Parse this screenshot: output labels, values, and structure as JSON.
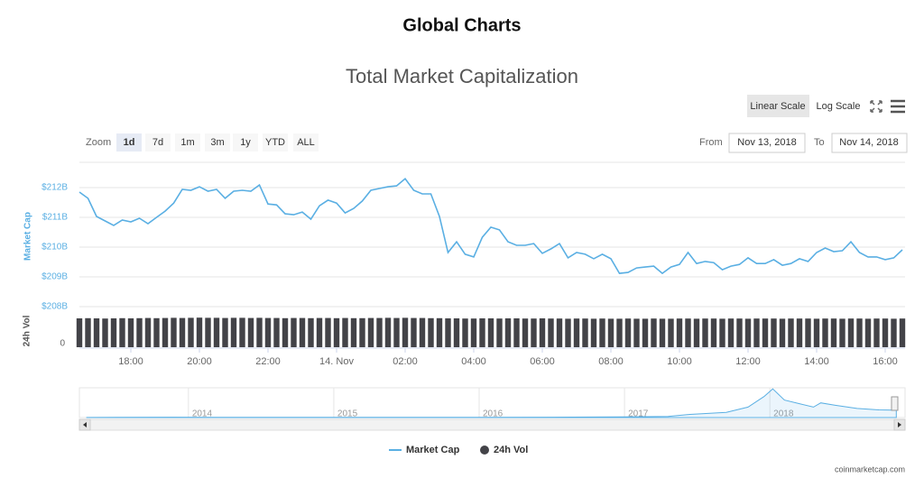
{
  "header": {
    "title": "Global Charts"
  },
  "chart_data": {
    "type": "line",
    "title": "Total Market Capitalization",
    "scale_buttons": [
      "Linear Scale",
      "Log Scale"
    ],
    "log_scale": false,
    "zoom_label": "Zoom",
    "zoom_buttons": [
      "1d",
      "7d",
      "1m",
      "3m",
      "1y",
      "YTD",
      "ALL"
    ],
    "zoom_selected": 0,
    "from_label": "From",
    "from": "Nov 13, 2018",
    "to_label": "To",
    "to": "Nov 14, 2018",
    "y_label": "Market Cap",
    "y2_label": "24h Vol",
    "x": [
      "2018-11-13 16:30",
      "2018-11-13 16:45",
      "2018-11-13 17:00",
      "2018-11-13 17:15",
      "2018-11-13 17:30",
      "2018-11-13 17:45",
      "2018-11-13 18:00",
      "2018-11-13 18:15",
      "2018-11-13 18:30",
      "2018-11-13 18:45",
      "2018-11-13 19:00",
      "2018-11-13 19:15",
      "2018-11-13 19:30",
      "2018-11-13 19:45",
      "2018-11-13 20:00",
      "2018-11-13 20:15",
      "2018-11-13 20:30",
      "2018-11-13 20:45",
      "2018-11-13 21:00",
      "2018-11-13 21:15",
      "2018-11-13 21:30",
      "2018-11-13 21:45",
      "2018-11-13 22:00",
      "2018-11-13 22:15",
      "2018-11-13 22:30",
      "2018-11-13 22:45",
      "2018-11-13 23:00",
      "2018-11-13 23:15",
      "2018-11-13 23:30",
      "2018-11-13 23:45",
      "2018-11-14 00:00",
      "2018-11-14 00:15",
      "2018-11-14 00:30",
      "2018-11-14 00:45",
      "2018-11-14 01:00",
      "2018-11-14 01:15",
      "2018-11-14 01:30",
      "2018-11-14 01:45",
      "2018-11-14 02:00",
      "2018-11-14 02:15",
      "2018-11-14 02:30",
      "2018-11-14 02:45",
      "2018-11-14 03:00",
      "2018-11-14 03:15",
      "2018-11-14 03:30",
      "2018-11-14 03:45",
      "2018-11-14 04:00",
      "2018-11-14 04:15",
      "2018-11-14 04:30",
      "2018-11-14 04:45",
      "2018-11-14 05:00",
      "2018-11-14 05:15",
      "2018-11-14 05:30",
      "2018-11-14 05:45",
      "2018-11-14 06:00",
      "2018-11-14 06:15",
      "2018-11-14 06:30",
      "2018-11-14 06:45",
      "2018-11-14 07:00",
      "2018-11-14 07:15",
      "2018-11-14 07:30",
      "2018-11-14 07:45",
      "2018-11-14 08:00",
      "2018-11-14 08:15",
      "2018-11-14 08:30",
      "2018-11-14 08:45",
      "2018-11-14 09:00",
      "2018-11-14 09:15",
      "2018-11-14 09:30",
      "2018-11-14 09:45",
      "2018-11-14 10:00",
      "2018-11-14 10:15",
      "2018-11-14 10:30",
      "2018-11-14 10:45",
      "2018-11-14 11:00",
      "2018-11-14 11:15",
      "2018-11-14 11:30",
      "2018-11-14 11:45",
      "2018-11-14 12:00",
      "2018-11-14 12:15",
      "2018-11-14 12:30",
      "2018-11-14 12:45",
      "2018-11-14 13:00",
      "2018-11-14 13:15",
      "2018-11-14 13:30",
      "2018-11-14 13:45",
      "2018-11-14 14:00",
      "2018-11-14 14:15",
      "2018-11-14 14:30",
      "2018-11-14 14:45",
      "2018-11-14 15:00",
      "2018-11-14 15:15",
      "2018-11-14 15:30",
      "2018-11-14 15:45",
      "2018-11-14 16:00",
      "2018-11-14 16:15",
      "2018-11-14 16:30"
    ],
    "xlim": [
      "2018-11-13 16:30",
      "2018-11-14 16:30"
    ],
    "xticks": [
      {
        "value": "2018-11-13 18:00",
        "label": "18:00"
      },
      {
        "value": "2018-11-13 20:00",
        "label": "20:00"
      },
      {
        "value": "2018-11-13 22:00",
        "label": "22:00"
      },
      {
        "value": "2018-11-14 00:00",
        "label": "14. Nov"
      },
      {
        "value": "2018-11-14 02:00",
        "label": "02:00"
      },
      {
        "value": "2018-11-14 04:00",
        "label": "04:00"
      },
      {
        "value": "2018-11-14 06:00",
        "label": "06:00"
      },
      {
        "value": "2018-11-14 08:00",
        "label": "08:00"
      },
      {
        "value": "2018-11-14 10:00",
        "label": "10:00"
      },
      {
        "value": "2018-11-14 12:00",
        "label": "12:00"
      },
      {
        "value": "2018-11-14 14:00",
        "label": "14:00"
      },
      {
        "value": "2018-11-14 16:00",
        "label": "16:00"
      }
    ],
    "ylim": [
      208,
      212.85
    ],
    "yticks": [
      {
        "value": 208,
        "label": "$208B"
      },
      {
        "value": 209,
        "label": "$209B"
      },
      {
        "value": 210,
        "label": "$210B"
      },
      {
        "value": 211,
        "label": "$211B"
      },
      {
        "value": 212,
        "label": "$212B"
      }
    ],
    "y2lim": [
      0,
      17.5
    ],
    "y2ticks": [
      0
    ],
    "grid": true,
    "series": [
      {
        "name": "Market Cap",
        "color": "#5aafe3",
        "values": [
          211.85,
          211.64,
          211.03,
          210.88,
          210.73,
          210.91,
          210.85,
          210.97,
          210.79,
          211.0,
          211.21,
          211.48,
          211.94,
          211.91,
          212.03,
          211.88,
          211.94,
          211.64,
          211.88,
          211.91,
          211.88,
          212.09,
          211.45,
          211.42,
          211.12,
          211.09,
          211.18,
          210.94,
          211.39,
          211.58,
          211.48,
          211.15,
          211.3,
          211.55,
          211.91,
          211.97,
          212.03,
          212.06,
          212.3,
          211.91,
          211.79,
          211.79,
          211.03,
          209.82,
          210.18,
          209.76,
          209.67,
          210.33,
          210.67,
          210.58,
          210.18,
          210.06,
          210.06,
          210.12,
          209.79,
          209.94,
          210.12,
          209.64,
          209.82,
          209.76,
          209.61,
          209.76,
          209.61,
          209.12,
          209.15,
          209.3,
          209.33,
          209.36,
          209.12,
          209.33,
          209.42,
          209.82,
          209.45,
          209.52,
          209.48,
          209.24,
          209.36,
          209.42,
          209.64,
          209.45,
          209.45,
          209.58,
          209.39,
          209.45,
          209.61,
          209.52,
          209.82,
          209.97,
          209.85,
          209.88,
          210.18,
          209.82,
          209.67,
          209.67,
          209.58,
          209.64,
          209.91
        ]
      },
      {
        "name": "24h Vol",
        "color": "#434348",
        "type": "bar",
        "axis": "y2",
        "values": [
          16.0,
          16.1,
          16.0,
          15.9,
          16.0,
          16.1,
          16.0,
          16.1,
          16.2,
          16.1,
          16.2,
          16.3,
          16.2,
          16.3,
          16.4,
          16.3,
          16.3,
          16.2,
          16.3,
          16.3,
          16.2,
          16.3,
          16.2,
          16.2,
          16.1,
          16.2,
          16.2,
          16.1,
          16.2,
          16.2,
          16.1,
          16.2,
          16.1,
          16.1,
          16.2,
          16.2,
          16.3,
          16.2,
          16.3,
          16.2,
          16.2,
          16.1,
          16.1,
          16.0,
          16.0,
          15.9,
          15.9,
          16.0,
          16.0,
          15.9,
          16.0,
          16.0,
          15.9,
          15.9,
          16.0,
          15.9,
          15.9,
          15.8,
          15.9,
          15.9,
          15.8,
          15.9,
          15.8,
          15.8,
          15.9,
          15.8,
          15.8,
          15.9,
          15.8,
          15.8,
          15.9,
          15.9,
          15.8,
          15.9,
          15.9,
          15.8,
          15.9,
          15.9,
          15.8,
          15.9,
          15.9,
          15.9,
          15.8,
          15.9,
          15.9,
          15.9,
          15.8,
          15.9,
          15.9,
          15.8,
          15.9,
          15.9,
          15.8,
          15.9,
          15.9,
          15.8,
          15.9
        ]
      }
    ],
    "navigator": {
      "x": [
        2013.3,
        2013.9,
        2014.2,
        2014.5,
        2015.0,
        2015.5,
        2016.0,
        2016.5,
        2017.0,
        2017.3,
        2017.45,
        2017.7,
        2017.85,
        2017.96,
        2018.02,
        2018.1,
        2018.2,
        2018.3,
        2018.35,
        2018.45,
        2018.6,
        2018.75,
        2018.85,
        2018.87
      ],
      "values": [
        1.5,
        10,
        8,
        8,
        4,
        4,
        6,
        10,
        17,
        30,
        90,
        150,
        300,
        600,
        820,
        500,
        400,
        300,
        420,
        350,
        260,
        220,
        210,
        205
      ],
      "xlim": [
        2013.25,
        2018.93
      ],
      "ylim": [
        0,
        850
      ],
      "xticks": [
        2014,
        2015,
        2016,
        2017,
        2018
      ]
    },
    "legend": "bottom",
    "credits": "coinmarketcap.com"
  }
}
